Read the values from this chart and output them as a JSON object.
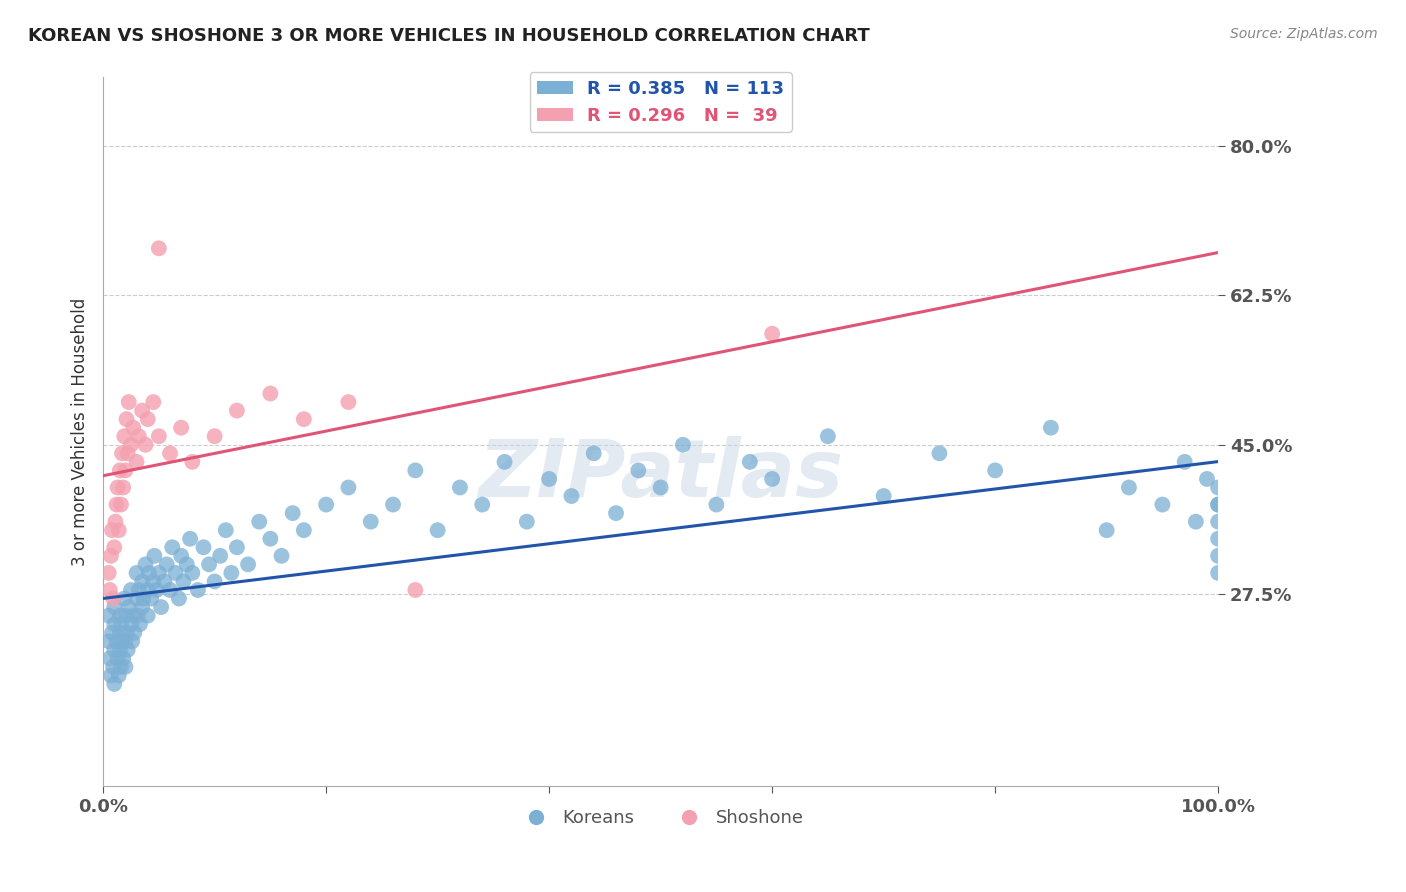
{
  "title": "KOREAN VS SHOSHONE 3 OR MORE VEHICLES IN HOUSEHOLD CORRELATION CHART",
  "source": "Source: ZipAtlas.com",
  "ylabel": "3 or more Vehicles in Household",
  "xlim": [
    0.0,
    1.0
  ],
  "ylim": [
    0.05,
    0.88
  ],
  "yticks": [
    0.275,
    0.45,
    0.625,
    0.8
  ],
  "yticklabels": [
    "27.5%",
    "45.0%",
    "62.5%",
    "80.0%"
  ],
  "korean_color": "#7bafd4",
  "shoshone_color": "#f4a0b0",
  "korean_line_color": "#2255aa",
  "shoshone_line_color": "#e05575",
  "legend_r_korean": "R = 0.385",
  "legend_n_korean": "N = 113",
  "legend_r_shoshone": "R = 0.296",
  "legend_n_shoshone": "N =  39",
  "watermark": "ZIPatlas",
  "background_color": "#ffffff",
  "grid_color": "#cccccc",
  "korean_x": [
    0.005,
    0.005,
    0.006,
    0.007,
    0.008,
    0.009,
    0.01,
    0.01,
    0.01,
    0.01,
    0.012,
    0.013,
    0.014,
    0.015,
    0.015,
    0.015,
    0.016,
    0.016,
    0.017,
    0.018,
    0.019,
    0.02,
    0.02,
    0.02,
    0.021,
    0.022,
    0.023,
    0.025,
    0.025,
    0.026,
    0.027,
    0.028,
    0.03,
    0.03,
    0.031,
    0.032,
    0.033,
    0.035,
    0.035,
    0.036,
    0.038,
    0.04,
    0.04,
    0.041,
    0.043,
    0.045,
    0.046,
    0.048,
    0.05,
    0.052,
    0.055,
    0.057,
    0.06,
    0.062,
    0.065,
    0.068,
    0.07,
    0.072,
    0.075,
    0.078,
    0.08,
    0.085,
    0.09,
    0.095,
    0.1,
    0.105,
    0.11,
    0.115,
    0.12,
    0.13,
    0.14,
    0.15,
    0.16,
    0.17,
    0.18,
    0.2,
    0.22,
    0.24,
    0.26,
    0.28,
    0.3,
    0.32,
    0.34,
    0.36,
    0.38,
    0.4,
    0.42,
    0.44,
    0.46,
    0.48,
    0.5,
    0.52,
    0.55,
    0.58,
    0.6,
    0.65,
    0.7,
    0.75,
    0.8,
    0.85,
    0.9,
    0.92,
    0.95,
    0.97,
    0.98,
    0.99,
    1.0,
    1.0,
    1.0,
    1.0,
    1.0,
    1.0,
    1.0
  ],
  "korean_y": [
    0.22,
    0.25,
    0.2,
    0.18,
    0.23,
    0.19,
    0.21,
    0.24,
    0.17,
    0.26,
    0.22,
    0.2,
    0.18,
    0.23,
    0.25,
    0.21,
    0.19,
    0.24,
    0.22,
    0.2,
    0.27,
    0.22,
    0.25,
    0.19,
    0.23,
    0.21,
    0.26,
    0.24,
    0.28,
    0.22,
    0.25,
    0.23,
    0.27,
    0.3,
    0.25,
    0.28,
    0.24,
    0.26,
    0.29,
    0.27,
    0.31,
    0.28,
    0.25,
    0.3,
    0.27,
    0.29,
    0.32,
    0.28,
    0.3,
    0.26,
    0.29,
    0.31,
    0.28,
    0.33,
    0.3,
    0.27,
    0.32,
    0.29,
    0.31,
    0.34,
    0.3,
    0.28,
    0.33,
    0.31,
    0.29,
    0.32,
    0.35,
    0.3,
    0.33,
    0.31,
    0.36,
    0.34,
    0.32,
    0.37,
    0.35,
    0.38,
    0.4,
    0.36,
    0.38,
    0.42,
    0.35,
    0.4,
    0.38,
    0.43,
    0.36,
    0.41,
    0.39,
    0.44,
    0.37,
    0.42,
    0.4,
    0.45,
    0.38,
    0.43,
    0.41,
    0.46,
    0.39,
    0.44,
    0.42,
    0.47,
    0.35,
    0.4,
    0.38,
    0.43,
    0.36,
    0.41,
    0.3,
    0.32,
    0.34,
    0.36,
    0.38,
    0.4,
    0.38
  ],
  "shoshone_x": [
    0.005,
    0.006,
    0.007,
    0.008,
    0.05,
    0.009,
    0.01,
    0.011,
    0.012,
    0.013,
    0.014,
    0.015,
    0.016,
    0.017,
    0.018,
    0.019,
    0.02,
    0.021,
    0.022,
    0.023,
    0.025,
    0.027,
    0.03,
    0.032,
    0.035,
    0.038,
    0.04,
    0.045,
    0.05,
    0.06,
    0.07,
    0.08,
    0.1,
    0.12,
    0.15,
    0.18,
    0.22,
    0.28,
    0.6
  ],
  "shoshone_y": [
    0.3,
    0.28,
    0.32,
    0.35,
    0.68,
    0.27,
    0.33,
    0.36,
    0.38,
    0.4,
    0.35,
    0.42,
    0.38,
    0.44,
    0.4,
    0.46,
    0.42,
    0.48,
    0.44,
    0.5,
    0.45,
    0.47,
    0.43,
    0.46,
    0.49,
    0.45,
    0.48,
    0.5,
    0.46,
    0.44,
    0.47,
    0.43,
    0.46,
    0.49,
    0.51,
    0.48,
    0.5,
    0.28,
    0.58
  ]
}
